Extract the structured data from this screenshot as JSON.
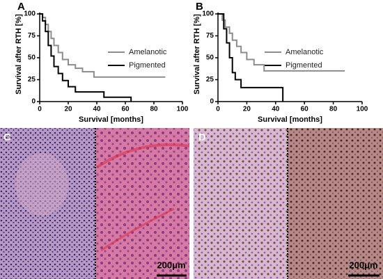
{
  "chart_data": [
    {
      "type": "line",
      "label": "A",
      "xlabel": "Survival [months]",
      "ylabel": "Survival after RTH [%]",
      "xlim": [
        0,
        100
      ],
      "ylim": [
        0,
        100
      ],
      "xticks": [
        0,
        20,
        40,
        60,
        80,
        100
      ],
      "yticks": [
        0,
        25,
        50,
        75,
        100
      ],
      "series": [
        {
          "name": "Amelanotic",
          "color": "#8c8c8c",
          "x": [
            0,
            2,
            2,
            4,
            4,
            6,
            6,
            8,
            8,
            10,
            10,
            13,
            13,
            16,
            16,
            20,
            20,
            25,
            25,
            30,
            30,
            38,
            38,
            88
          ],
          "values": [
            100,
            100,
            96,
            96,
            88,
            88,
            80,
            80,
            72,
            72,
            64,
            64,
            56,
            56,
            48,
            48,
            42,
            42,
            38,
            38,
            34,
            34,
            28,
            28
          ]
        },
        {
          "name": "Pigmented",
          "color": "#000000",
          "x": [
            0,
            2,
            2,
            4,
            4,
            6,
            6,
            8,
            8,
            10,
            10,
            13,
            13,
            16,
            16,
            20,
            20,
            25,
            25,
            45,
            45,
            64,
            64
          ],
          "values": [
            100,
            100,
            92,
            92,
            80,
            80,
            64,
            64,
            52,
            52,
            40,
            40,
            32,
            32,
            24,
            24,
            17,
            17,
            11,
            11,
            5,
            5,
            0
          ]
        }
      ]
    },
    {
      "type": "line",
      "label": "B",
      "xlabel": "Survival [months]",
      "ylabel": "Survival after RTH [%]",
      "xlim": [
        0,
        100
      ],
      "ylim": [
        0,
        100
      ],
      "xticks": [
        0,
        20,
        40,
        60,
        80,
        100
      ],
      "yticks": [
        0,
        25,
        50,
        75,
        100
      ],
      "series": [
        {
          "name": "Amelanotic",
          "color": "#8c8c8c",
          "x": [
            0,
            3,
            3,
            5,
            5,
            8,
            8,
            10,
            10,
            13,
            13,
            16,
            16,
            20,
            20,
            25,
            25,
            32,
            32,
            88
          ],
          "values": [
            100,
            100,
            93,
            93,
            85,
            85,
            78,
            78,
            70,
            70,
            63,
            63,
            56,
            56,
            48,
            48,
            42,
            42,
            35,
            35
          ]
        },
        {
          "name": "Pigmented",
          "color": "#000000",
          "x": [
            0,
            4,
            4,
            6,
            6,
            8,
            8,
            10,
            10,
            12,
            12,
            16,
            16,
            45,
            45
          ],
          "values": [
            100,
            100,
            83,
            83,
            67,
            67,
            50,
            50,
            33,
            33,
            25,
            25,
            16,
            16,
            0
          ]
        }
      ]
    }
  ],
  "images": [
    {
      "label": "C",
      "scale_bar": "200μm"
    },
    {
      "label": "D",
      "scale_bar": "200μm"
    }
  ]
}
